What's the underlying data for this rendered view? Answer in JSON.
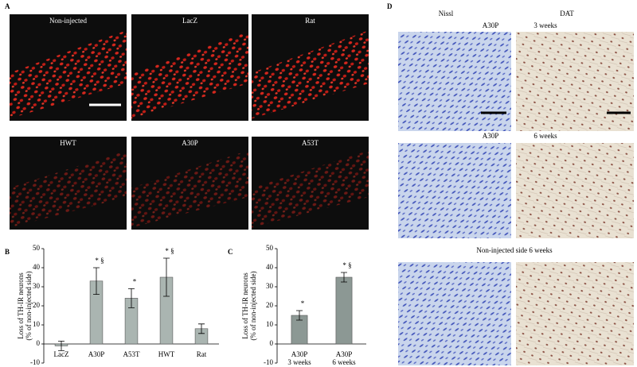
{
  "panel_a": {
    "label": "A",
    "images": [
      "Non-injected",
      "LacZ",
      "Rat",
      "HWT",
      "A30P",
      "A53T"
    ]
  },
  "panel_d": {
    "label": "D",
    "columns": [
      "Nissl",
      "DAT"
    ],
    "row_labels": [
      "A30P",
      "3 weeks",
      "A30P",
      "6 weeks",
      "Non-injected side 6 weeks"
    ]
  },
  "chart_data": [
    {
      "type": "bar",
      "panel_label": "B",
      "ylabel": "Loss of TH-IR neurons\n(% of non-injected side)",
      "categories": [
        "LacZ",
        "A30P",
        "A53T",
        "HWT",
        "Rat"
      ],
      "values": [
        -1,
        33,
        24,
        35,
        8
      ],
      "errors": [
        2.5,
        7,
        5,
        10,
        2.5
      ],
      "annotations": [
        null,
        "* §",
        "*",
        "* §",
        null
      ],
      "color": "#aab5b1",
      "ylim": [
        -10,
        50
      ],
      "yticks": [
        -10,
        0,
        10,
        20,
        30,
        40,
        50
      ]
    },
    {
      "type": "bar",
      "panel_label": "C",
      "ylabel": "Loss of TH-IR neurons\n(% of non-injected side)",
      "categories": [
        "A30P\n3 weeks",
        "A30P\n6 weeks"
      ],
      "values": [
        15,
        35
      ],
      "errors": [
        2.5,
        2.5
      ],
      "annotations": [
        "*",
        "* §"
      ],
      "color": "#8c9894",
      "ylim": [
        -10,
        50
      ],
      "yticks": [
        -10,
        0,
        10,
        20,
        30,
        40,
        50
      ]
    }
  ]
}
